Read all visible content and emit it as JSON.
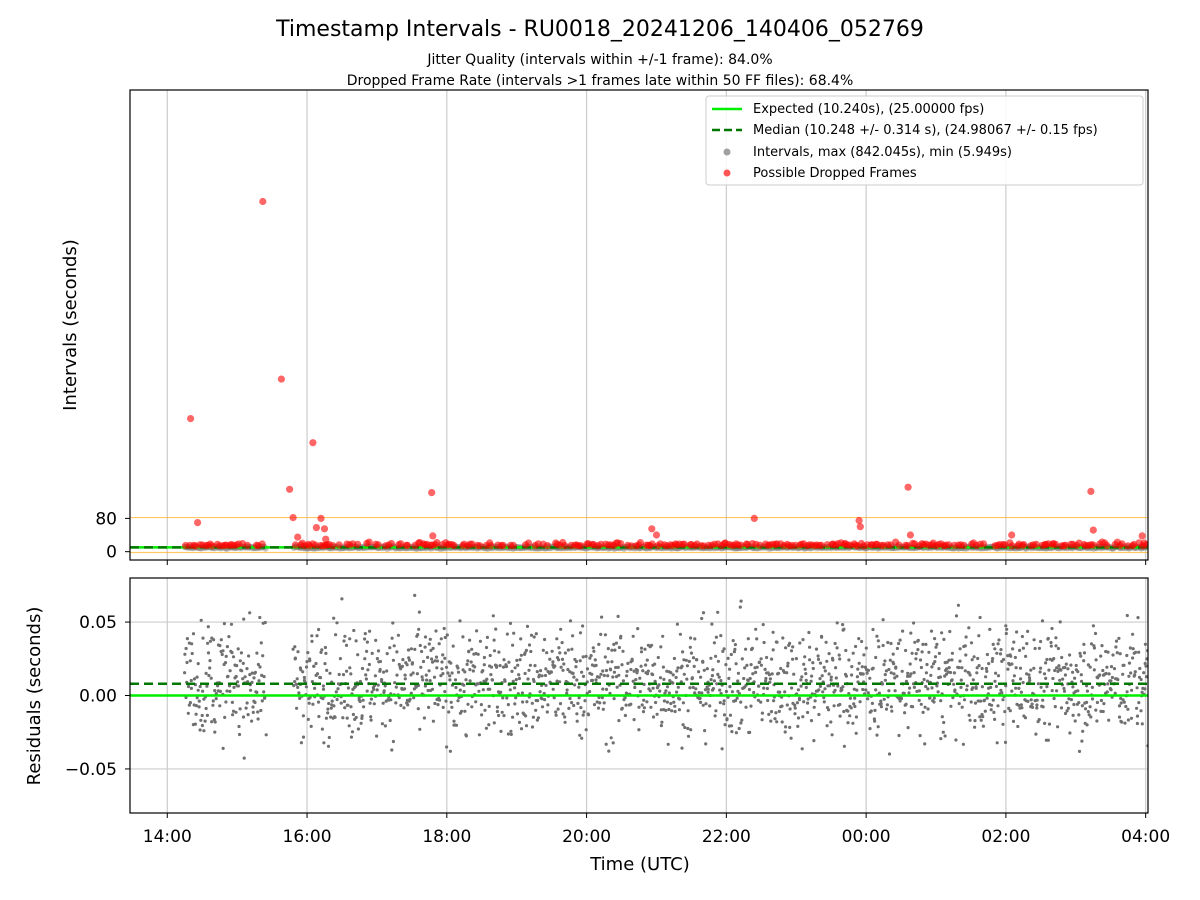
{
  "chart_data": [
    {
      "type": "scatter",
      "panel": "top",
      "title": "Timestamp Intervals - RU0018_20241206_140406_052769",
      "subtitle_lines": [
        "Jitter Quality (intervals within +/-1 frame): 84.0%",
        "Dropped Frame Rate (intervals >1 frames late within 50 FF files): 68.4%"
      ],
      "ylabel": "Intervals (seconds)",
      "xlim": [
        "13:28",
        "04:02"
      ],
      "ylim": [
        -20,
        1110
      ],
      "yticks": [
        0,
        80
      ],
      "ytick_labels": [
        "0",
        "80"
      ],
      "grid": "vertical",
      "legend_position": "top-right",
      "reference_lines": [
        {
          "name": "Expected (10.240s), (25.00000 fps)",
          "y": 10.24,
          "color": "#00ee00",
          "style": "solid"
        },
        {
          "name": "Median (10.248 +/- 0.314 s), (24.98067 +/- 0.15 fps)",
          "y": 10.248,
          "color": "#007700",
          "style": "dashed"
        },
        {
          "name": "",
          "y": 82,
          "color": "#ffa500",
          "style": "solid"
        },
        {
          "name": "",
          "y": -2,
          "color": "#ffa500",
          "style": "solid"
        }
      ],
      "series": [
        {
          "name": "Intervals, max (842.045s), min (5.949s)",
          "color": "#808080",
          "style": "dots"
        },
        {
          "name": "Possible Dropped Frames",
          "color": "#ff0000",
          "style": "dots",
          "x": [
            "14:20",
            "14:26",
            "15:22",
            "15:38",
            "15:45",
            "15:48",
            "15:52",
            "16:05",
            "16:08",
            "16:12",
            "16:15",
            "16:16",
            "17:47",
            "17:48",
            "20:56",
            "21:00",
            "22:24",
            "23:54",
            "23:55",
            "00:36",
            "00:38",
            "02:05",
            "03:13",
            "03:15",
            "03:57"
          ],
          "y": [
            320,
            70,
            842,
            415,
            150,
            82,
            35,
            262,
            58,
            80,
            55,
            30,
            142,
            38,
            55,
            40,
            80,
            75,
            60,
            155,
            40,
            40,
            145,
            52,
            38
          ]
        }
      ]
    },
    {
      "type": "scatter",
      "panel": "bottom",
      "xlabel": "Time (UTC)",
      "ylabel": "Residuals (seconds)",
      "xlim": [
        "13:28",
        "04:02"
      ],
      "ylim": [
        -0.08,
        0.08
      ],
      "yticks": [
        0.05,
        0.0,
        -0.05
      ],
      "ytick_labels": [
        "0.05",
        "0.00",
        "−0.05"
      ],
      "xticks": [
        "14:00",
        "16:00",
        "18:00",
        "20:00",
        "22:00",
        "00:00",
        "02:00",
        "04:00"
      ],
      "grid": "both",
      "reference_lines": [
        {
          "name": "Expected",
          "y": 0.0,
          "color": "#00ee00",
          "style": "solid"
        },
        {
          "name": "Median",
          "y": 0.008,
          "color": "#007700",
          "style": "dashed"
        }
      ],
      "series": [
        {
          "name": "Residuals",
          "color": "#808080",
          "style": "dots",
          "x_range": [
            "14:15",
            "04:02"
          ],
          "gaps": [
            [
              "15:25",
              "15:48"
            ]
          ],
          "center": 0.01,
          "spread": 0.02
        }
      ]
    }
  ],
  "legend": {
    "entries": [
      {
        "label": "Expected (10.240s), (25.00000 fps)",
        "color": "#00ee00",
        "marker": "line"
      },
      {
        "label": "Median (10.248 +/- 0.314 s), (24.98067 +/- 0.15 fps)",
        "color": "#007700",
        "marker": "dashed"
      },
      {
        "label": "Intervals, max (842.045s), min (5.949s)",
        "color": "#a0a0a0",
        "marker": "dot"
      },
      {
        "label": "Possible Dropped Frames",
        "color": "#ff5555",
        "marker": "dot"
      }
    ]
  }
}
